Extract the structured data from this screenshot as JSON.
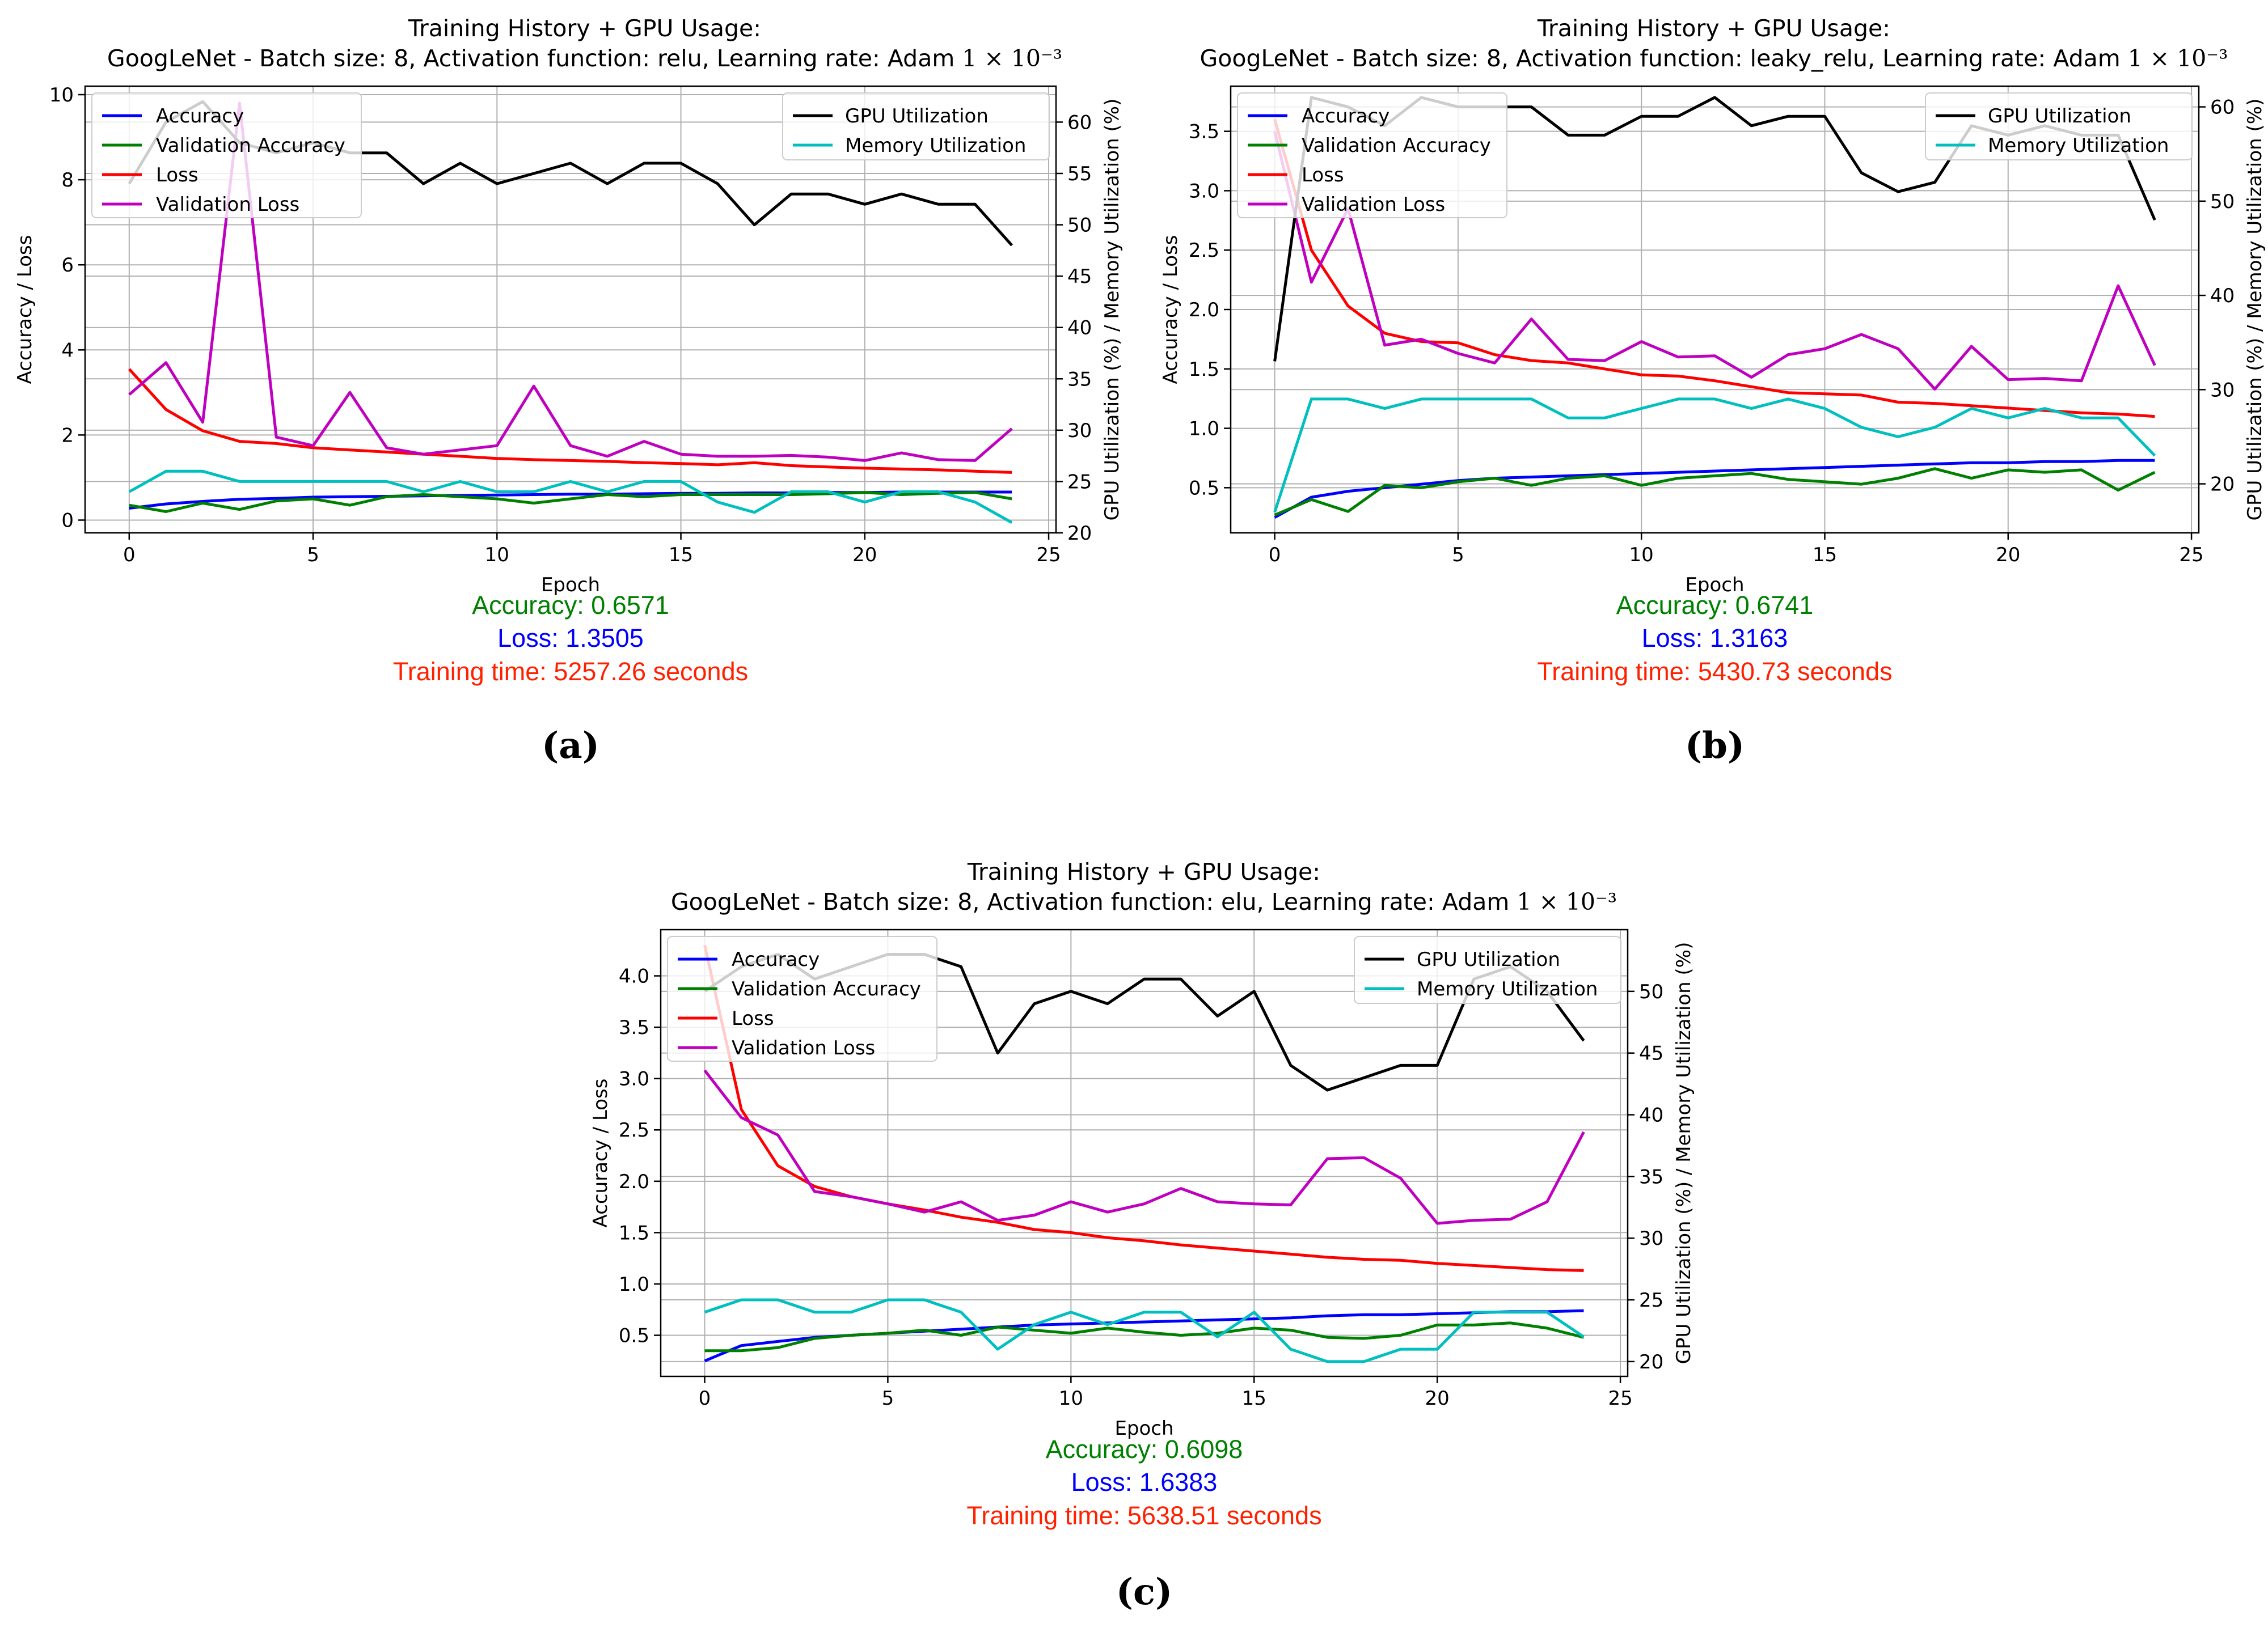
{
  "colors": {
    "Accuracy": "#0000ff",
    "Validation Accuracy": "#008000",
    "Loss": "#ff0000",
    "Validation Loss": "#bf00bf",
    "GPU Utilization": "#000000",
    "Memory Utilization": "#00bfbf",
    "stat_accuracy": "#008000",
    "stat_loss": "#0000ff",
    "stat_time": "#ff2000"
  },
  "chart_data": [
    {
      "type": "line",
      "panel_label": "(a)",
      "title_line1": "Training History + GPU Usage:",
      "title_line2": "GoogLeNet - Batch size: 8, Activation function: relu, Learning rate: Adam",
      "title_math": "1 × 10⁻³",
      "xlabel": "Epoch",
      "ylabel": "Accuracy / Loss",
      "y2label": "GPU Utilization (%) / Memory Utilization (%)",
      "xlim": [
        -1.2,
        25.2
      ],
      "xticks": [
        "0",
        "5",
        "10",
        "15",
        "20",
        "25"
      ],
      "ylim": [
        -0.3,
        10.2
      ],
      "yticks": [
        "0",
        "2",
        "4",
        "6",
        "8",
        "10"
      ],
      "y2lim": [
        20,
        63.5
      ],
      "y2ticks": [
        "20",
        "25",
        "30",
        "35",
        "40",
        "45",
        "50",
        "55",
        "60"
      ],
      "grid": true,
      "x": [
        0,
        1,
        2,
        3,
        4,
        5,
        6,
        7,
        8,
        9,
        10,
        11,
        12,
        13,
        14,
        15,
        16,
        17,
        18,
        19,
        20,
        21,
        22,
        23,
        24
      ],
      "series": [
        {
          "name": "Accuracy",
          "axis": "left",
          "values": [
            0.28,
            0.38,
            0.44,
            0.49,
            0.51,
            0.54,
            0.55,
            0.56,
            0.57,
            0.58,
            0.59,
            0.6,
            0.61,
            0.61,
            0.62,
            0.63,
            0.63,
            0.64,
            0.64,
            0.65,
            0.65,
            0.66,
            0.66,
            0.66,
            0.66
          ]
        },
        {
          "name": "Validation Accuracy",
          "axis": "left",
          "values": [
            0.35,
            0.2,
            0.4,
            0.25,
            0.45,
            0.5,
            0.35,
            0.55,
            0.6,
            0.55,
            0.5,
            0.4,
            0.5,
            0.6,
            0.55,
            0.6,
            0.6,
            0.6,
            0.6,
            0.62,
            0.65,
            0.6,
            0.63,
            0.65,
            0.5
          ]
        },
        {
          "name": "Loss",
          "axis": "left",
          "values": [
            3.55,
            2.6,
            2.1,
            1.85,
            1.8,
            1.7,
            1.65,
            1.6,
            1.55,
            1.5,
            1.45,
            1.42,
            1.4,
            1.38,
            1.35,
            1.33,
            1.3,
            1.35,
            1.28,
            1.25,
            1.22,
            1.2,
            1.18,
            1.15,
            1.12
          ]
        },
        {
          "name": "Validation Loss",
          "axis": "left",
          "values": [
            2.95,
            3.7,
            2.3,
            9.8,
            1.95,
            1.75,
            3.0,
            1.7,
            1.55,
            1.65,
            1.75,
            3.15,
            1.75,
            1.5,
            1.85,
            1.55,
            1.5,
            1.5,
            1.52,
            1.48,
            1.4,
            1.58,
            1.42,
            1.4,
            2.15
          ]
        },
        {
          "name": "GPU Utilization",
          "axis": "right",
          "values": [
            54,
            60,
            62,
            58,
            57,
            58,
            57,
            57,
            54,
            56,
            54,
            55,
            56,
            54,
            56,
            56,
            54,
            50,
            53,
            53,
            52,
            53,
            52,
            52,
            48
          ]
        },
        {
          "name": "Memory Utilization",
          "axis": "right",
          "values": [
            24,
            26,
            26,
            25,
            25,
            25,
            25,
            25,
            24,
            25,
            24,
            24,
            25,
            24,
            25,
            25,
            23,
            22,
            24,
            24,
            23,
            24,
            24,
            23,
            21
          ]
        }
      ],
      "legend_left": [
        "Accuracy",
        "Validation Accuracy",
        "Loss",
        "Validation Loss"
      ],
      "legend_right": [
        "GPU Utilization",
        "Memory Utilization"
      ],
      "stats": {
        "accuracy": "Accuracy: 0.6571",
        "loss": "Loss: 1.3505",
        "time": "Training time: 5257.26 seconds"
      }
    },
    {
      "type": "line",
      "panel_label": "(b)",
      "title_line1": "Training History + GPU Usage:",
      "title_line2": "GoogLeNet - Batch size: 8, Activation function: leaky_relu, Learning rate: Adam",
      "title_math": "1 × 10⁻³",
      "xlabel": "Epoch",
      "ylabel": "Accuracy / Loss",
      "y2label": "GPU Utilization (%) / Memory Utilization (%)",
      "xlim": [
        -1.2,
        25.2
      ],
      "xticks": [
        "0",
        "5",
        "10",
        "15",
        "20",
        "25"
      ],
      "ylim": [
        0.12,
        3.88
      ],
      "yticks": [
        "0.5",
        "1.0",
        "1.5",
        "2.0",
        "2.5",
        "3.0",
        "3.5"
      ],
      "y2lim": [
        14.8,
        62.2
      ],
      "y2ticks": [
        "20",
        "30",
        "40",
        "50",
        "60"
      ],
      "grid": true,
      "x": [
        0,
        1,
        2,
        3,
        4,
        5,
        6,
        7,
        8,
        9,
        10,
        11,
        12,
        13,
        14,
        15,
        16,
        17,
        18,
        19,
        20,
        21,
        22,
        23,
        24
      ],
      "series": [
        {
          "name": "Accuracy",
          "axis": "left",
          "values": [
            0.25,
            0.42,
            0.47,
            0.5,
            0.53,
            0.56,
            0.58,
            0.59,
            0.6,
            0.61,
            0.62,
            0.63,
            0.64,
            0.65,
            0.66,
            0.67,
            0.68,
            0.69,
            0.7,
            0.71,
            0.71,
            0.72,
            0.72,
            0.73,
            0.73
          ]
        },
        {
          "name": "Validation Accuracy",
          "axis": "left",
          "values": [
            0.27,
            0.4,
            0.3,
            0.52,
            0.5,
            0.55,
            0.58,
            0.52,
            0.58,
            0.6,
            0.52,
            0.58,
            0.6,
            0.62,
            0.57,
            0.55,
            0.53,
            0.58,
            0.66,
            0.58,
            0.65,
            0.63,
            0.65,
            0.48,
            0.63
          ]
        },
        {
          "name": "Loss",
          "axis": "left",
          "values": [
            3.6,
            2.5,
            2.03,
            1.8,
            1.73,
            1.72,
            1.62,
            1.57,
            1.55,
            1.5,
            1.45,
            1.44,
            1.4,
            1.35,
            1.3,
            1.29,
            1.28,
            1.22,
            1.21,
            1.19,
            1.17,
            1.15,
            1.13,
            1.12,
            1.1
          ]
        },
        {
          "name": "Validation Loss",
          "axis": "left",
          "values": [
            3.5,
            2.23,
            2.85,
            1.7,
            1.75,
            1.63,
            1.55,
            1.92,
            1.58,
            1.57,
            1.73,
            1.6,
            1.61,
            1.43,
            1.62,
            1.67,
            1.79,
            1.67,
            1.33,
            1.69,
            1.41,
            1.42,
            1.4,
            2.2,
            1.53
          ]
        },
        {
          "name": "GPU Utilization",
          "axis": "right",
          "values": [
            33,
            61,
            60,
            58,
            61,
            60,
            60,
            60,
            57,
            57,
            59,
            59,
            61,
            58,
            59,
            59,
            53,
            51,
            52,
            58,
            57,
            58,
            57,
            57,
            48
          ]
        },
        {
          "name": "Memory Utilization",
          "axis": "right",
          "values": [
            17,
            29,
            29,
            28,
            29,
            29,
            29,
            29,
            27,
            27,
            28,
            29,
            29,
            28,
            29,
            28,
            26,
            25,
            26,
            28,
            27,
            28,
            27,
            27,
            23
          ]
        }
      ],
      "legend_left": [
        "Accuracy",
        "Validation Accuracy",
        "Loss",
        "Validation Loss"
      ],
      "legend_right": [
        "GPU Utilization",
        "Memory Utilization"
      ],
      "stats": {
        "accuracy": "Accuracy: 0.6741",
        "loss": "Loss: 1.3163",
        "time": "Training time: 5430.73 seconds"
      }
    },
    {
      "type": "line",
      "panel_label": "(c)",
      "title_line1": "Training History + GPU Usage:",
      "title_line2": "GoogLeNet - Batch size: 8, Activation function: elu, Learning rate: Adam",
      "title_math": "1 × 10⁻³",
      "xlabel": "Epoch",
      "ylabel": "Accuracy / Loss",
      "y2label": "GPU Utilization (%) / Memory Utilization (%)",
      "xlim": [
        -1.2,
        25.2
      ],
      "xticks": [
        "0",
        "5",
        "10",
        "15",
        "20",
        "25"
      ],
      "ylim": [
        0.1,
        4.45
      ],
      "yticks": [
        "0.5",
        "1.0",
        "1.5",
        "2.0",
        "2.5",
        "3.0",
        "3.5",
        "4.0"
      ],
      "y2lim": [
        18.8,
        55
      ],
      "y2ticks": [
        "20",
        "25",
        "30",
        "35",
        "40",
        "45",
        "50"
      ],
      "grid": true,
      "x": [
        0,
        1,
        2,
        3,
        4,
        5,
        6,
        7,
        8,
        9,
        10,
        11,
        12,
        13,
        14,
        15,
        16,
        17,
        18,
        19,
        20,
        21,
        22,
        23,
        24
      ],
      "series": [
        {
          "name": "Accuracy",
          "axis": "left",
          "values": [
            0.25,
            0.4,
            0.44,
            0.48,
            0.5,
            0.52,
            0.54,
            0.56,
            0.58,
            0.6,
            0.61,
            0.62,
            0.63,
            0.64,
            0.65,
            0.66,
            0.67,
            0.69,
            0.7,
            0.7,
            0.71,
            0.72,
            0.73,
            0.73,
            0.74
          ]
        },
        {
          "name": "Validation Accuracy",
          "axis": "left",
          "values": [
            0.35,
            0.35,
            0.38,
            0.47,
            0.5,
            0.52,
            0.55,
            0.5,
            0.58,
            0.55,
            0.52,
            0.57,
            0.53,
            0.5,
            0.52,
            0.57,
            0.55,
            0.48,
            0.47,
            0.5,
            0.6,
            0.6,
            0.62,
            0.57,
            0.48
          ]
        },
        {
          "name": "Loss",
          "axis": "left",
          "values": [
            4.3,
            2.7,
            2.15,
            1.95,
            1.85,
            1.78,
            1.72,
            1.65,
            1.6,
            1.53,
            1.5,
            1.45,
            1.42,
            1.38,
            1.35,
            1.32,
            1.29,
            1.26,
            1.24,
            1.23,
            1.2,
            1.18,
            1.16,
            1.14,
            1.13
          ]
        },
        {
          "name": "Validation Loss",
          "axis": "left",
          "values": [
            3.08,
            2.62,
            2.45,
            1.9,
            1.85,
            1.78,
            1.7,
            1.8,
            1.62,
            1.67,
            1.8,
            1.7,
            1.78,
            1.93,
            1.8,
            1.78,
            1.77,
            2.22,
            2.23,
            2.03,
            1.59,
            1.62,
            1.63,
            1.8,
            2.48
          ]
        },
        {
          "name": "GPU Utilization",
          "axis": "right",
          "values": [
            50,
            52,
            53,
            51,
            52,
            53,
            53,
            52,
            45,
            49,
            50,
            49,
            51,
            51,
            48,
            50,
            44,
            42,
            43,
            44,
            44,
            51,
            52,
            50,
            46
          ]
        },
        {
          "name": "Memory Utilization",
          "axis": "right",
          "values": [
            24,
            25,
            25,
            24,
            24,
            25,
            25,
            24,
            21,
            23,
            24,
            23,
            24,
            24,
            22,
            24,
            21,
            20,
            20,
            21,
            21,
            24,
            24,
            24,
            22
          ]
        }
      ],
      "legend_left": [
        "Accuracy",
        "Validation Accuracy",
        "Loss",
        "Validation Loss"
      ],
      "legend_right": [
        "GPU Utilization",
        "Memory Utilization"
      ],
      "stats": {
        "accuracy": "Accuracy: 0.6098",
        "loss": "Loss: 1.6383",
        "time": "Training time: 5638.51 seconds"
      }
    }
  ]
}
